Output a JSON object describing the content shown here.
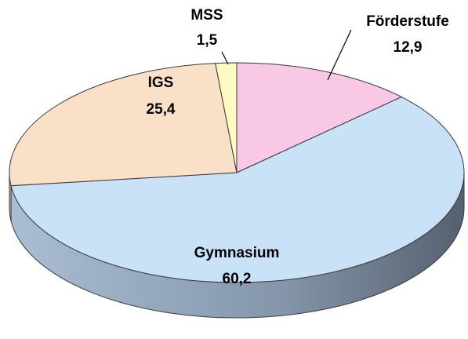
{
  "chart_data": {
    "type": "pie3d",
    "categories": [
      "Förderstufe",
      "Gymnasium",
      "IGS",
      "MSS"
    ],
    "values": [
      12.9,
      60.2,
      25.4,
      1.5
    ],
    "value_labels": [
      "12,9",
      "60,2",
      "25,4",
      "1,5"
    ],
    "colors": [
      "#f9c8e4",
      "#c9e2f8",
      "#fbe0c8",
      "#fefbc2"
    ],
    "start_angle": 0,
    "direction": "clockwise"
  }
}
